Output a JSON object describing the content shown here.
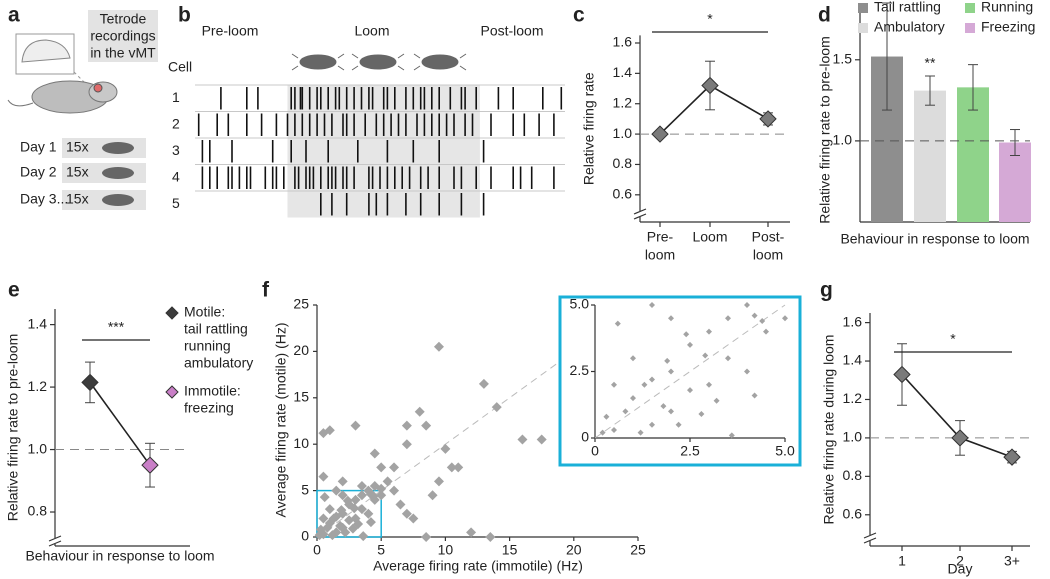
{
  "panel_a": {
    "panel": "a",
    "callout": [
      "Tetrode",
      "recordings",
      "in the vMT"
    ],
    "days": [
      {
        "label": "Day 1",
        "count": "15x"
      },
      {
        "label": "Day 2",
        "count": "15x"
      },
      {
        "label": "Day 3...",
        "count": "15x"
      }
    ]
  },
  "chart_data": [
    {
      "type": "raster",
      "panel": "b",
      "phases": [
        "Pre-loom",
        "Loom",
        "Post-loom"
      ],
      "row_title": "Cell",
      "rows": [
        "1",
        "2",
        "3",
        "4",
        "5"
      ],
      "xlim": [
        0,
        100
      ],
      "loom_window": [
        25,
        77
      ],
      "spikes": [
        [
          7,
          14,
          17,
          26,
          27,
          28.5,
          29,
          31,
          33,
          34,
          36,
          38,
          39,
          41,
          43,
          45,
          47,
          48,
          51,
          52,
          54,
          57,
          59,
          61,
          62,
          64,
          66,
          69,
          72,
          73,
          76,
          82,
          86,
          94,
          99
        ],
        [
          1,
          6,
          9,
          14,
          18,
          22,
          25,
          27,
          29,
          31,
          33,
          35,
          37,
          40,
          41,
          43,
          46,
          49,
          51,
          53,
          55,
          57,
          60,
          62,
          64,
          66,
          68,
          70,
          73,
          75,
          80,
          86,
          89,
          93,
          97
        ],
        [
          2,
          4,
          10,
          21,
          26,
          30,
          36,
          44,
          52,
          59,
          66,
          78
        ],
        [
          2,
          4,
          6,
          9,
          10,
          12,
          14,
          15,
          19,
          21,
          22,
          24,
          27,
          28,
          30,
          31,
          32,
          34,
          36,
          37,
          38,
          40,
          41,
          43,
          47,
          48,
          50,
          52,
          54,
          56,
          58,
          61,
          63,
          66,
          70,
          72,
          76,
          80,
          86,
          88,
          91,
          97
        ],
        [
          34,
          37,
          41,
          47,
          49,
          52,
          57,
          61,
          66,
          72,
          78
        ]
      ]
    },
    {
      "type": "line",
      "panel": "c",
      "y_label": "Relative firing rate",
      "categories": [
        [
          "Pre-",
          "loom"
        ],
        [
          "Loom"
        ],
        [
          "Post-",
          "loom"
        ]
      ],
      "values": [
        1.0,
        1.32,
        1.1
      ],
      "errors": [
        0,
        0.16,
        0.04
      ],
      "color": "#7a7a7a",
      "ylim": [
        0.5,
        1.65
      ],
      "yticks": [
        0.6,
        0.8,
        {
          "value": 1,
          "label": "1.0"
        },
        1.2,
        1.4,
        1.6
      ],
      "reference_line": 1,
      "significance": {
        "label": "*",
        "between": [
          0,
          2
        ]
      }
    },
    {
      "type": "bar",
      "panel": "d",
      "x_label": "Behaviour in response to loom",
      "y_label": "Relative firing rate to pre-loom",
      "categories": [
        "Tail rattling",
        "Ambulatory",
        "Running",
        "Freezing"
      ],
      "colors": [
        "#8e8e8e",
        "#dcdcdc",
        "#8fd38a",
        "#d5a9d6"
      ],
      "values": [
        1.52,
        1.31,
        1.33,
        0.99
      ],
      "errors": [
        0.33,
        0.09,
        0.14,
        0.08
      ],
      "ylim": [
        0.5,
        1.85
      ],
      "yticks": [
        {
          "value": 1,
          "label": "1.0"
        },
        1.5
      ],
      "reference_line": 1,
      "annotations": [
        {
          "label": "**",
          "category": 1
        }
      ]
    },
    {
      "type": "line",
      "panel": "e",
      "x_label": "Behaviour in response to loom",
      "y_label": "Relative firing rate to pre-loom",
      "values": [
        1.215,
        0.95
      ],
      "errors": [
        0.065,
        0.07
      ],
      "legend": [
        {
          "name": "Motile:",
          "members": [
            "tail rattling",
            "running",
            "ambulatory"
          ],
          "color": "#3c3c3c"
        },
        {
          "name": "Immotile:",
          "members": [
            "freezing"
          ],
          "color": "#c97fc7"
        }
      ],
      "ylim": [
        0.72,
        1.45
      ],
      "yticks": [
        0.8,
        {
          "value": 1,
          "label": "1.0"
        },
        1.2,
        1.4
      ],
      "reference_line": 1,
      "significance": {
        "label": "***",
        "between": [
          0,
          1
        ]
      }
    },
    {
      "type": "scatter",
      "panel": "f",
      "x_label": "Average firing rate (immotile) (Hz)",
      "y_label": "Average firing rate (motile) (Hz)",
      "color": "#a3a3a3",
      "inset_color": "#1ab0d8",
      "diagonal": true,
      "xlim": [
        0,
        25
      ],
      "ylim": [
        0,
        25
      ],
      "xticks": [
        0,
        5,
        10,
        15,
        20,
        25
      ],
      "yticks": [
        0,
        5,
        10,
        15,
        20,
        25
      ],
      "inset": {
        "xlim": [
          0,
          5
        ],
        "ylim": [
          0,
          5
        ],
        "xticks": [
          0,
          2.5,
          {
            "value": 5,
            "label": "5.0"
          }
        ],
        "yticks": [
          0,
          2.5,
          {
            "value": 5,
            "label": "5.0"
          }
        ]
      },
      "x": [
        0.5,
        1,
        0.5,
        1.5,
        2,
        2.5,
        3,
        3.5,
        4,
        4.5,
        5,
        4.5,
        5,
        3,
        2,
        1,
        0.5,
        1,
        0.3,
        0.5,
        1.5,
        2,
        2.5,
        3.5,
        4,
        5.5,
        6,
        6,
        6.5,
        7,
        7.5,
        8.5,
        9.5,
        13,
        14,
        10,
        10.5,
        11,
        9.5,
        9,
        12,
        13.5,
        16,
        17.5,
        8.5,
        8,
        7,
        7,
        3,
        4.5,
        5,
        2,
        3.5,
        0.2,
        0.8,
        1.2,
        1.8,
        2.2,
        2.8,
        3.2,
        1.5,
        0.6,
        4.2,
        3.6,
        4.4,
        4.2,
        2.4,
        1.9,
        1.3,
        2.9
      ],
      "y": [
        11.2,
        11.5,
        6.5,
        5,
        4.5,
        3.5,
        4,
        4.5,
        5,
        5.5,
        5.2,
        4,
        4.5,
        2,
        2.5,
        3,
        2,
        1.5,
        0.8,
        0.3,
        0.5,
        1,
        1.8,
        3,
        2.5,
        6,
        7.5,
        5,
        3.5,
        2.5,
        2,
        0,
        20.5,
        16.5,
        14,
        9.5,
        7.5,
        7.5,
        6,
        4.5,
        0.5,
        0,
        10.5,
        10.5,
        12,
        13.5,
        10,
        12,
        12,
        9,
        7.5,
        6,
        5.5,
        0.2,
        1,
        0.2,
        1.2,
        0.5,
        0.9,
        1.4,
        2.2,
        4.3,
        1.6,
        0.1,
        4.4,
        4.6,
        3.9,
        2.9,
        2,
        3.1
      ]
    },
    {
      "type": "line",
      "panel": "g",
      "x_label": "Day",
      "y_label": "Relative firing rate during loom",
      "categories": [
        [
          "1"
        ],
        [
          "2"
        ],
        [
          "3+"
        ]
      ],
      "values": [
        1.33,
        1.0,
        0.9
      ],
      "errors": [
        0.16,
        0.09,
        0.03
      ],
      "color": "#7a7a7a",
      "ylim": [
        0.5,
        1.65
      ],
      "yticks": [
        0.6,
        0.8,
        {
          "value": 1,
          "label": "1.0"
        },
        1.2,
        1.4,
        1.6
      ],
      "reference_line": 1,
      "significance": {
        "label": "*",
        "between": [
          0,
          2
        ]
      }
    }
  ]
}
